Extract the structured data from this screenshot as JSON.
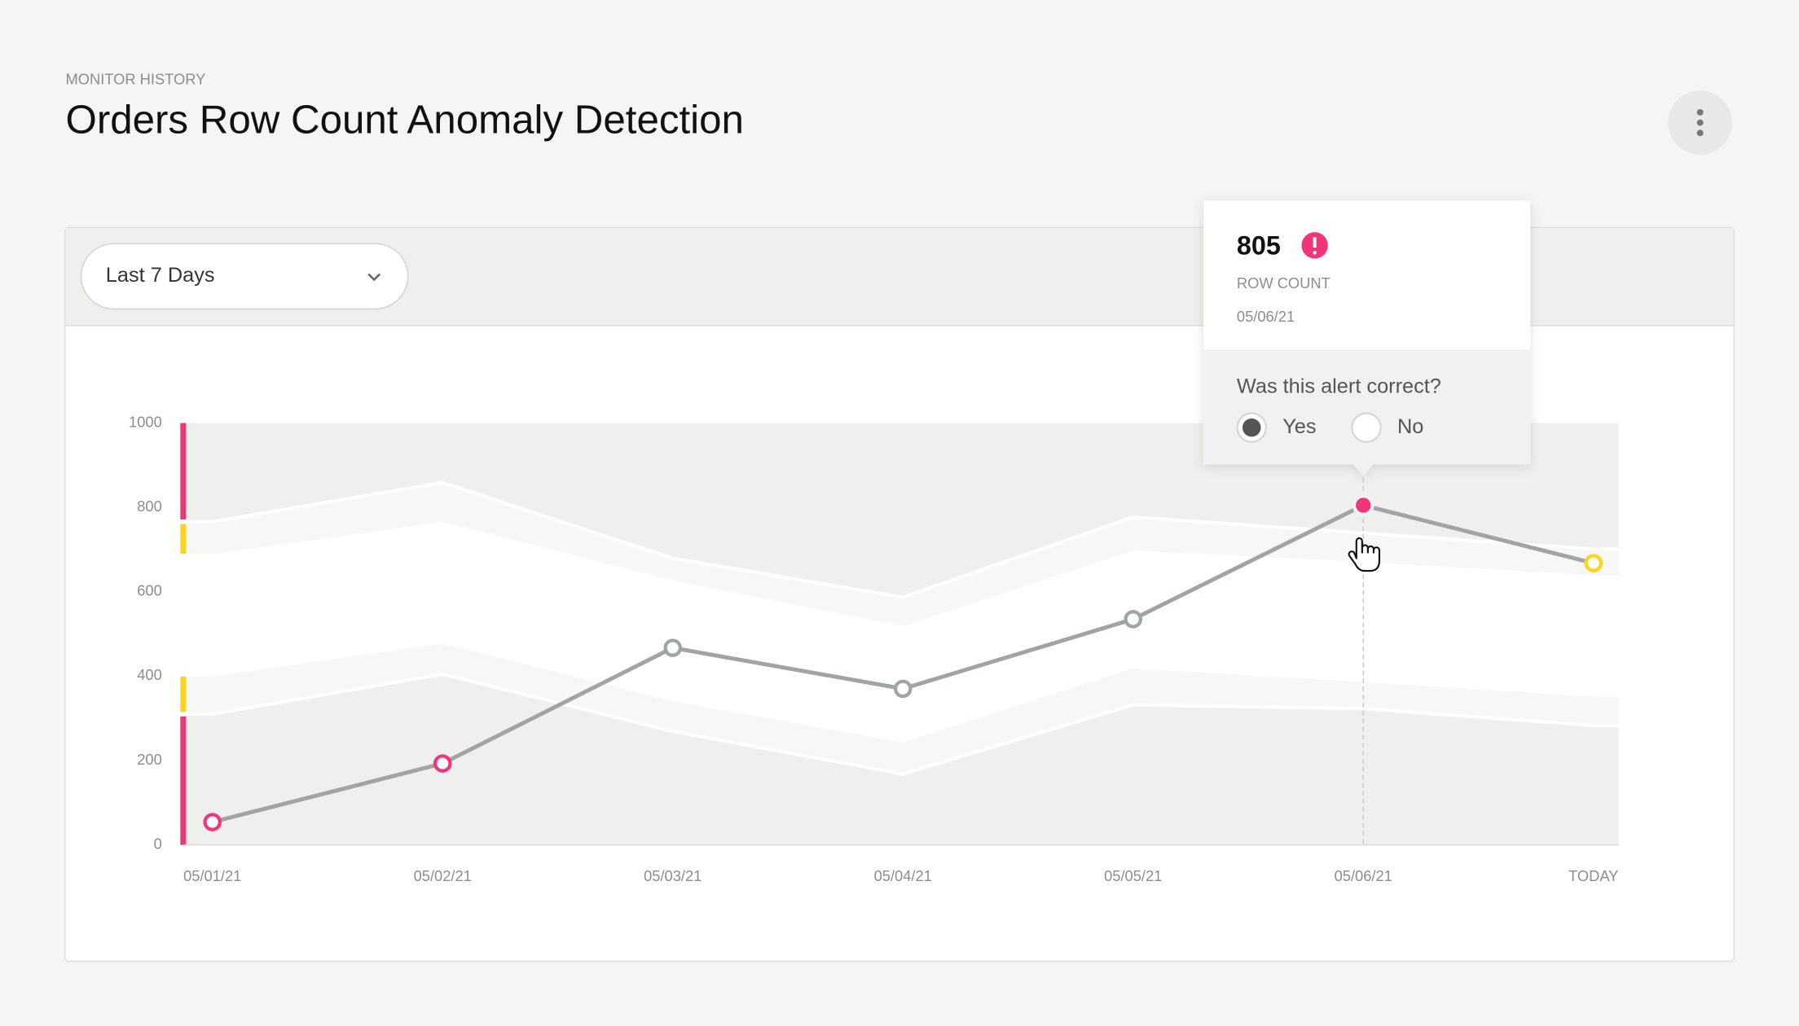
{
  "header": {
    "eyebrow": "MONITOR HISTORY",
    "title": "Orders Row Count Anomaly Detection"
  },
  "filter": {
    "selected": "Last 7 Days"
  },
  "chart_data": {
    "type": "line",
    "categories": [
      "05/01/21",
      "05/02/21",
      "05/03/21",
      "05/04/21",
      "05/05/21",
      "05/06/21",
      "TODAY"
    ],
    "series": [
      {
        "color": "#9ea5a2",
        "values": [
          54,
          193,
          467,
          370,
          535,
          805,
          668
        ],
        "point_colors": [
          "#f0357b",
          "#f0357b",
          "#9ea5a2",
          "#9ea5a2",
          "#9ea5a2",
          "#f0357b",
          "#ffd31a"
        ]
      }
    ],
    "bands": {
      "upper_outer": [
        766,
        859,
        679,
        587,
        777,
        739,
        701
      ],
      "upper_inner": [
        690,
        766,
        628,
        519,
        698,
        671,
        639
      ],
      "lower_inner": [
        399,
        476,
        340,
        242,
        418,
        386,
        351
      ],
      "lower_outer": [
        310,
        405,
        269,
        168,
        332,
        323,
        283
      ]
    },
    "alert_color": "#f0357b",
    "warning_color": "#ffd31a",
    "ylim": [
      0,
      1000
    ],
    "yticks": [
      0,
      200,
      400,
      600,
      800,
      1000
    ]
  },
  "tooltip": {
    "point_index": 5,
    "label": "ROW COUNT",
    "question": "Was this alert correct?",
    "options": [
      "Yes",
      "No"
    ],
    "selected": 0
  }
}
